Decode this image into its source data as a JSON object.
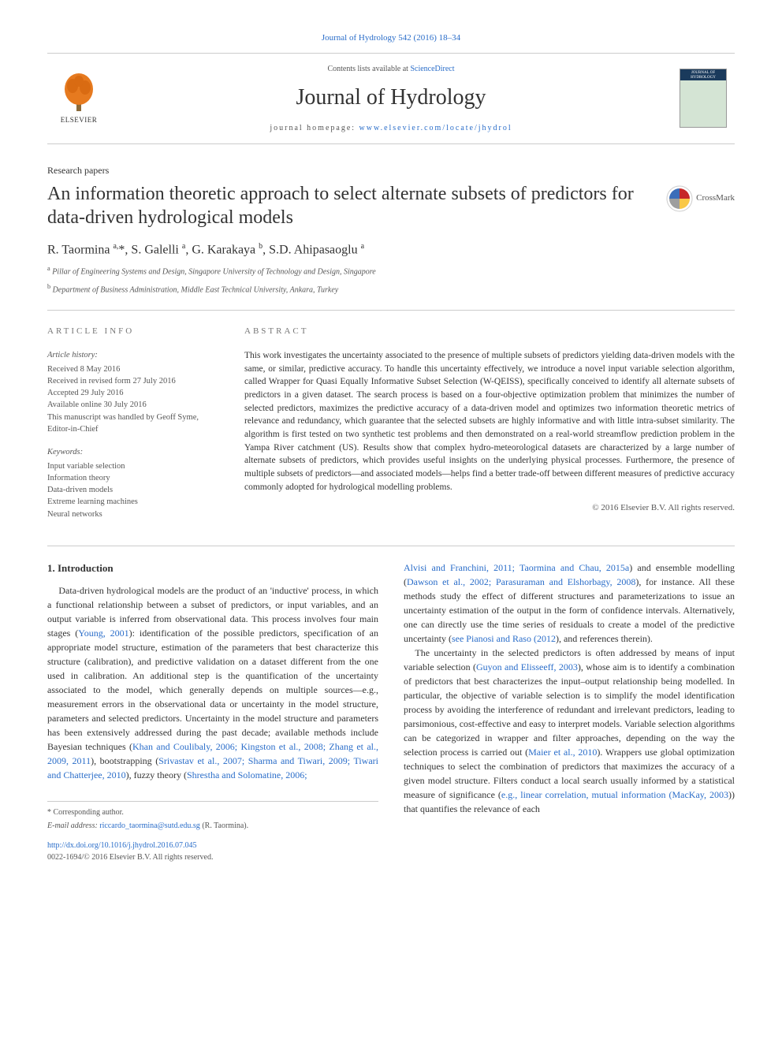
{
  "top_reference": "Journal of Hydrology 542 (2016) 18–34",
  "masthead": {
    "contents_prefix": "Contents lists available at ",
    "contents_link": "ScienceDirect",
    "journal_name": "Journal of Hydrology",
    "homepage_prefix": "journal homepage: ",
    "homepage_url": "www.elsevier.com/locate/jhydrol",
    "publisher_word": "ELSEVIER",
    "cover_label": "JOURNAL OF HYDROLOGY"
  },
  "colors": {
    "link": "#2a6dc9",
    "text": "#333333",
    "muted": "#555555",
    "line": "#cccccc",
    "elsevier_orange": "#e67a1f",
    "cover_bg": "#d4e4d4",
    "cover_bar": "#1a3a5c",
    "crossmark_red": "#c62828",
    "crossmark_yellow": "#f9c846",
    "crossmark_blue": "#3b6db9",
    "crossmark_grey": "#9e9e9e"
  },
  "typography": {
    "body_pt": 12,
    "title_pt": 24,
    "journal_name_pt": 28,
    "authors_pt": 16,
    "abstract_pt": 11.5,
    "info_pt": 10.5,
    "footnote_pt": 10
  },
  "paper": {
    "section_label": "Research papers",
    "title": "An information theoretic approach to select alternate subsets of predictors for data-driven hydrological models",
    "crossmark_label": "CrossMark",
    "authors_html": "R. Taormina <sup>a,</sup>*, S. Galelli <sup>a</sup>, G. Karakaya <sup>b</sup>, S.D. Ahipasaoglu <sup>a</sup>",
    "affiliations": [
      {
        "sup": "a",
        "text": "Pillar of Engineering Systems and Design, Singapore University of Technology and Design, Singapore"
      },
      {
        "sup": "b",
        "text": "Department of Business Administration, Middle East Technical University, Ankara, Turkey"
      }
    ]
  },
  "article_info": {
    "heading": "article info",
    "history_label": "Article history:",
    "history": [
      "Received 8 May 2016",
      "Received in revised form 27 July 2016",
      "Accepted 29 July 2016",
      "Available online 30 July 2016",
      "This manuscript was handled by Geoff Syme, Editor-in-Chief"
    ],
    "keywords_label": "Keywords:",
    "keywords": [
      "Input variable selection",
      "Information theory",
      "Data-driven models",
      "Extreme learning machines",
      "Neural networks"
    ]
  },
  "abstract": {
    "heading": "abstract",
    "text": "This work investigates the uncertainty associated to the presence of multiple subsets of predictors yielding data-driven models with the same, or similar, predictive accuracy. To handle this uncertainty effectively, we introduce a novel input variable selection algorithm, called Wrapper for Quasi Equally Informative Subset Selection (W-QEISS), specifically conceived to identify all alternate subsets of predictors in a given dataset. The search process is based on a four-objective optimization problem that minimizes the number of selected predictors, maximizes the predictive accuracy of a data-driven model and optimizes two information theoretic metrics of relevance and redundancy, which guarantee that the selected subsets are highly informative and with little intra-subset similarity. The algorithm is first tested on two synthetic test problems and then demonstrated on a real-world streamflow prediction problem in the Yampa River catchment (US). Results show that complex hydro-meteorological datasets are characterized by a large number of alternate subsets of predictors, which provides useful insights on the underlying physical processes. Furthermore, the presence of multiple subsets of predictors—and associated models—helps find a better trade-off between different measures of predictive accuracy commonly adopted for hydrological modelling problems.",
    "copyright": "© 2016 Elsevier B.V. All rights reserved."
  },
  "intro": {
    "heading": "1. Introduction",
    "left_para_full": "Data-driven hydrological models are the product of an 'inductive' process, in which a functional relationship between a subset of predictors, or input variables, and an output variable is inferred from observational data. This process involves four main stages (Young, 2001): identification of the possible predictors, specification of an appropriate model structure, estimation of the parameters that best characterize this structure (calibration), and predictive validation on a dataset different from the one used in calibration. An additional step is the quantification of the uncertainty associated to the model, which generally depends on multiple sources—e.g., measurement errors in the observational data or uncertainty in the model structure, parameters and selected predictors. Uncertainty in the model structure and parameters has been extensively addressed during the past decade; available methods include Bayesian techniques (Khan and Coulibaly, 2006; Kingston et al., 2008; Zhang et al., 2009, 2011), bootstrapping (Srivastav et al., 2007; Sharma and Tiwari, 2009; Tiwari and Chatterjee, 2010), fuzzy theory (Shrestha and Solomatine, 2006; ",
    "right_top_continuation": "Alvisi and Franchini, 2011; Taormina and Chau, 2015a) and ensemble modelling (Dawson et al., 2002; Parasuraman and Elshorbagy, 2008), for instance. All these methods study the effect of different structures and parameterizations to issue an uncertainty estimation of the output in the form of confidence intervals. Alternatively, one can directly use the time series of residuals to create a model of the predictive uncertainty (see Pianosi and Raso (2012), and references therein).",
    "right_para2": "The uncertainty in the selected predictors is often addressed by means of input variable selection (Guyon and Elisseeff, 2003), whose aim is to identify a combination of predictors that best characterizes the input–output relationship being modelled. In particular, the objective of variable selection is to simplify the model identification process by avoiding the interference of redundant and irrelevant predictors, leading to parsimonious, cost-effective and easy to interpret models. Variable selection algorithms can be categorized in wrapper and filter approaches, depending on the way the selection process is carried out (Maier et al., 2010). Wrappers use global optimization techniques to select the combination of predictors that maximizes the accuracy of a given model structure. Filters conduct a local search usually informed by a statistical measure of significance (e.g., linear correlation, mutual information (MacKay, 2003)) that quantifies the relevance of each"
  },
  "footnotes": {
    "corresponding": "* Corresponding author.",
    "email_label": "E-mail address: ",
    "email": "riccardo_taormina@sutd.edu.sg",
    "email_suffix": " (R. Taormina)."
  },
  "doi": {
    "url": "http://dx.doi.org/10.1016/j.jhydrol.2016.07.045",
    "issn_line": "0022-1694/© 2016 Elsevier B.V. All rights reserved."
  }
}
